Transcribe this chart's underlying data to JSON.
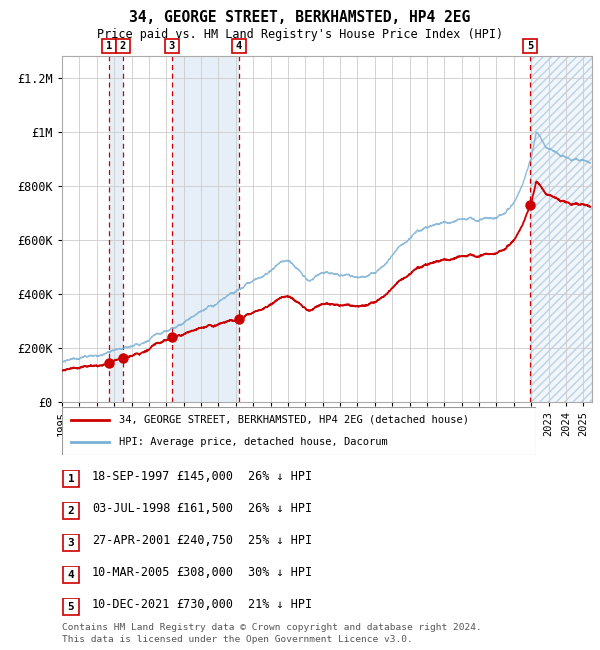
{
  "title": "34, GEORGE STREET, BERKHAMSTED, HP4 2EG",
  "subtitle": "Price paid vs. HM Land Registry's House Price Index (HPI)",
  "legend_line1": "34, GEORGE STREET, BERKHAMSTED, HP4 2EG (detached house)",
  "legend_line2": "HPI: Average price, detached house, Dacorum",
  "footer1": "Contains HM Land Registry data © Crown copyright and database right 2024.",
  "footer2": "This data is licensed under the Open Government Licence v3.0.",
  "sale_dates_num": [
    1997.72,
    1998.5,
    2001.32,
    2005.19,
    2021.94
  ],
  "sale_prices": [
    145000,
    161500,
    240750,
    308000,
    730000
  ],
  "sale_labels": [
    "1",
    "2",
    "3",
    "4",
    "5"
  ],
  "sale_rows": [
    [
      "1",
      "18-SEP-1997",
      "£145,000",
      "26% ↓ HPI"
    ],
    [
      "2",
      "03-JUL-1998",
      "£161,500",
      "26% ↓ HPI"
    ],
    [
      "3",
      "27-APR-2001",
      "£240,750",
      "25% ↓ HPI"
    ],
    [
      "4",
      "10-MAR-2005",
      "£308,000",
      "30% ↓ HPI"
    ],
    [
      "5",
      "10-DEC-2021",
      "£730,000",
      "21% ↓ HPI"
    ]
  ],
  "hpi_color": "#7ab0d4",
  "price_color": "#cc0000",
  "shade_color": "#dce9f5",
  "ylim": [
    0,
    1280000
  ],
  "xlim_start": 1995.0,
  "xlim_end": 2025.5,
  "yticks": [
    0,
    200000,
    400000,
    600000,
    800000,
    1000000,
    1200000
  ],
  "ytick_labels": [
    "£0",
    "£200K",
    "£400K",
    "£600K",
    "£800K",
    "£1M",
    "£1.2M"
  ]
}
